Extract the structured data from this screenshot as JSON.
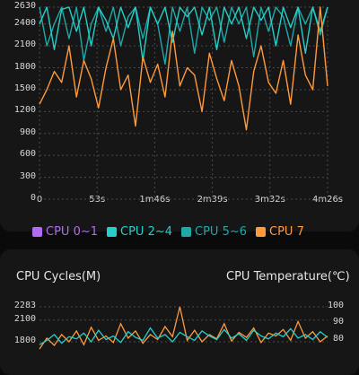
{
  "colors": {
    "cpu0_1": "#b06cf0",
    "cpu2_4": "#24cfc9",
    "cpu5_6": "#1fa8a8",
    "cpu7": "#ff9a3c",
    "grid": "#4a4a4a"
  },
  "freq_chart": {
    "legend": [
      {
        "label": "CPU 0~1",
        "color_key": "cpu0_1"
      },
      {
        "label": "CPU 2~4",
        "color_key": "cpu2_4"
      },
      {
        "label": "CPU 5~6",
        "color_key": "cpu5_6"
      },
      {
        "label": "CPU 7",
        "color_key": "cpu7"
      }
    ]
  },
  "cycles_chart": {
    "title_left": "CPU Cycles(M)",
    "title_right": "CPU Temperature(℃)"
  },
  "chart_data": [
    {
      "type": "line",
      "title": "",
      "xlabel": "",
      "ylabel": "",
      "y_ticks": [
        "2630",
        "2400",
        "2100",
        "1800",
        "1500",
        "1200",
        "900",
        "600",
        "300",
        "0"
      ],
      "x_ticks": [
        "0",
        "53s",
        "1m46s",
        "2m39s",
        "3m32s",
        "4m26s"
      ],
      "ylim": [
        0,
        2630
      ],
      "grid": true,
      "legend_position": "bottom",
      "series": [
        {
          "name": "CPU 5~6",
          "color_key": "cpu5_6",
          "values": [
            2630,
            2100,
            2400,
            2630,
            2200,
            2630,
            1900,
            2400,
            2630,
            2300,
            2630,
            2100,
            2500,
            2630,
            2200,
            2630,
            2400,
            1850,
            2630,
            2300,
            2630,
            2000,
            2630,
            2450,
            2630,
            2150,
            2630,
            2400,
            2630,
            1950,
            2630,
            2300,
            2630,
            2500,
            2100,
            2630,
            2400,
            2630,
            2250,
            2630
          ]
        },
        {
          "name": "CPU 2~4",
          "color_key": "cpu2_4",
          "values": [
            2400,
            2630,
            2050,
            2600,
            2630,
            2300,
            2630,
            2100,
            2630,
            2450,
            2200,
            2630,
            2350,
            2630,
            1900,
            2630,
            2400,
            2630,
            2150,
            2630,
            2500,
            2630,
            2250,
            2630,
            2050,
            2630,
            2400,
            2630,
            2200,
            2630,
            2450,
            2630,
            2100,
            2630,
            2350,
            2630,
            2000,
            2630,
            2300,
            2630
          ]
        },
        {
          "name": "CPU 7",
          "color_key": "cpu7",
          "values": [
            1300,
            1500,
            1750,
            1600,
            2100,
            1400,
            1900,
            1650,
            1250,
            1800,
            2200,
            1500,
            1700,
            1000,
            1950,
            1600,
            1850,
            1400,
            2300,
            1550,
            1800,
            1700,
            1200,
            2000,
            1650,
            1350,
            1900,
            1550,
            950,
            1750,
            2100,
            1600,
            1450,
            1900,
            1300,
            2250,
            1700,
            1500,
            2630,
            1550
          ]
        }
      ]
    },
    {
      "type": "line",
      "title": "CPU Cycles(M)",
      "xlabel": "",
      "ylabel": "CPU Temperature(℃)",
      "y_ticks_left": [
        "2283",
        "2100",
        "1800"
      ],
      "y_ticks_right": [
        "100",
        "90",
        "80"
      ],
      "ylim": [
        1600,
        2283
      ],
      "y2lim": [
        70,
        100
      ],
      "grid": true,
      "series": [
        {
          "name": "CPU 7",
          "color_key": "cpu7",
          "values": [
            1700,
            1850,
            1750,
            1900,
            1800,
            1950,
            1760,
            2000,
            1820,
            1880,
            1790,
            2050,
            1850,
            1950,
            1780,
            1900,
            1830,
            2010,
            1870,
            2283,
            1820,
            1960,
            1800,
            1900,
            1840,
            2050,
            1810,
            1930,
            1860,
            1990,
            1790,
            1920,
            1880,
            1970,
            1820,
            2080,
            1850,
            1940,
            1800,
            1880
          ]
        },
        {
          "name": "CPU 2~4",
          "color_key": "cpu2_4",
          "values": [
            1760,
            1820,
            1900,
            1780,
            1870,
            1840,
            1920,
            1800,
            1960,
            1830,
            1880,
            1790,
            1940,
            1860,
            1820,
            1990,
            1850,
            1900,
            1800,
            1930,
            1870,
            1820,
            1950,
            1880,
            1830,
            1970,
            1850,
            1910,
            1820,
            1960,
            1880,
            1840,
            1920,
            1870,
            1980,
            1850,
            1900,
            1830,
            1940,
            1860
          ]
        }
      ]
    }
  ]
}
